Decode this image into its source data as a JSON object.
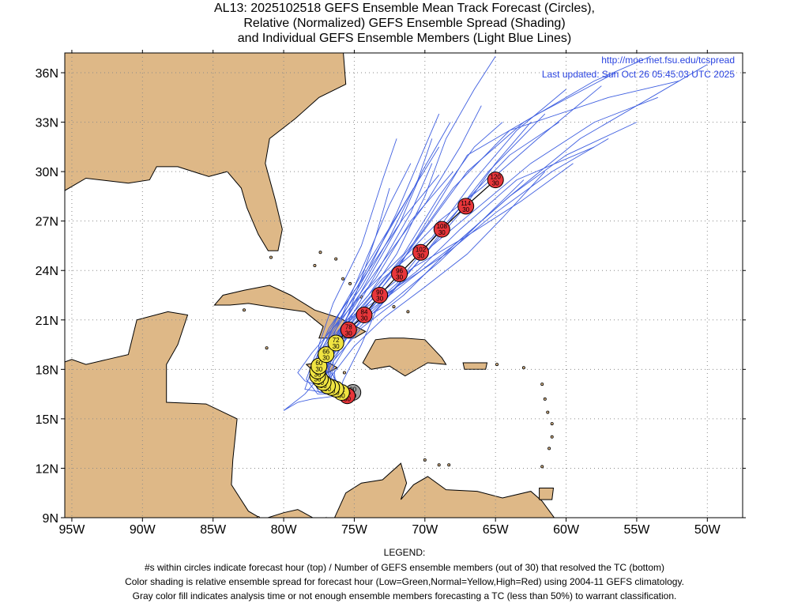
{
  "title": {
    "line1": "AL13: 2025102518 GEFS Ensemble Mean Track Forecast (Circles),",
    "line2": "Relative (Normalized) GEFS Ensemble Spread (Shading)",
    "line3": "and Individual GEFS Ensemble Members (Light Blue Lines)"
  },
  "header_links": {
    "url": "http://moe.met.fsu.edu/tcspread",
    "updated": "Last updated: Sun Oct 26 05:45:03 UTC 2025"
  },
  "axes": {
    "lon_ticks": [
      "95W",
      "90W",
      "85W",
      "80W",
      "75W",
      "70W",
      "65W",
      "60W",
      "55W",
      "50W"
    ],
    "lat_ticks": [
      "9N",
      "12N",
      "15N",
      "18N",
      "21N",
      "24N",
      "27N",
      "30N",
      "33N",
      "36N"
    ],
    "lon_range": [
      -95.5,
      -47.5
    ],
    "lat_range": [
      9,
      37.2
    ]
  },
  "colors": {
    "land": "#deb887",
    "ocean": "#ffffff",
    "member_track": "#3f5fe0",
    "spread_low": "#3cb44b",
    "spread_normal": "#f0e442",
    "spread_high": "#e8363a",
    "analysis": "#a0a0a0",
    "link": "#2b44e0"
  },
  "track_points": [
    {
      "hour": "00",
      "members": "30",
      "lon": -75.1,
      "lat": 16.6,
      "spread": "analysis"
    },
    {
      "hour": "06",
      "members": "30",
      "lon": -75.5,
      "lat": 16.4,
      "spread": "high"
    },
    {
      "hour": "12",
      "members": "30",
      "lon": -75.9,
      "lat": 16.6,
      "spread": "normal"
    },
    {
      "hour": "18",
      "members": "30",
      "lon": -76.3,
      "lat": 16.8,
      "spread": "normal"
    },
    {
      "hour": "24",
      "members": "30",
      "lon": -76.6,
      "lat": 16.9,
      "spread": "normal"
    },
    {
      "hour": "30",
      "members": "30",
      "lon": -76.9,
      "lat": 17.0,
      "spread": "normal"
    },
    {
      "hour": "36",
      "members": "30",
      "lon": -77.2,
      "lat": 17.2,
      "spread": "normal"
    },
    {
      "hour": "42",
      "members": "30",
      "lon": -77.4,
      "lat": 17.4,
      "spread": "normal"
    },
    {
      "hour": "48",
      "members": "30",
      "lon": -77.6,
      "lat": 17.6,
      "spread": "normal"
    },
    {
      "hour": "54",
      "members": "30",
      "lon": -77.6,
      "lat": 17.9,
      "spread": "normal"
    },
    {
      "hour": "60",
      "members": "30",
      "lon": -77.5,
      "lat": 18.2,
      "spread": "normal"
    },
    {
      "hour": "66",
      "members": "30",
      "lon": -77.0,
      "lat": 18.9,
      "spread": "normal"
    },
    {
      "hour": "72",
      "members": "30",
      "lon": -76.3,
      "lat": 19.6,
      "spread": "normal"
    },
    {
      "hour": "78",
      "members": "30",
      "lon": -75.4,
      "lat": 20.4,
      "spread": "high"
    },
    {
      "hour": "84",
      "members": "30",
      "lon": -74.3,
      "lat": 21.3,
      "spread": "high"
    },
    {
      "hour": "90",
      "members": "30",
      "lon": -73.2,
      "lat": 22.5,
      "spread": "high"
    },
    {
      "hour": "96",
      "members": "30",
      "lon": -71.8,
      "lat": 23.8,
      "spread": "high"
    },
    {
      "hour": "102",
      "members": "30",
      "lon": -70.3,
      "lat": 25.1,
      "spread": "high"
    },
    {
      "hour": "108",
      "members": "30",
      "lon": -68.8,
      "lat": 26.5,
      "spread": "high"
    },
    {
      "hour": "114",
      "members": "30",
      "lon": -67.1,
      "lat": 27.9,
      "spread": "high"
    },
    {
      "hour": "120",
      "members": "30",
      "lon": -65.0,
      "lat": 29.5,
      "spread": "high"
    }
  ],
  "legend": {
    "heading": "LEGEND:",
    "line1": "#s within circles indicate forecast hour (top) / Number of GEFS ensemble members (out of 30) that resolved the TC (bottom)",
    "line2": "Color shading is relative ensemble spread for forecast hour (Low=Green,Normal=Yellow,High=Red) using 2004-11 GEFS climatology.",
    "line3": "Gray color fill indicates analysis time or not enough ensemble members forecasting a TC (less than 50%) to warrant classification."
  }
}
